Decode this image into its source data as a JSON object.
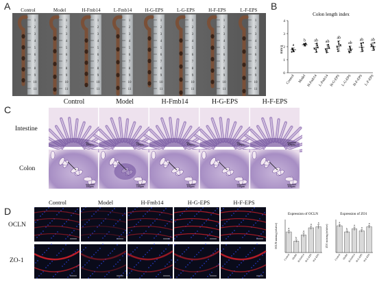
{
  "panels": {
    "a": "A",
    "b": "B",
    "c": "C",
    "d": "D"
  },
  "panelA": {
    "groups": [
      "Control",
      "Model",
      "H-Fmb14",
      "L-Fmb14",
      "H-G-EPS",
      "L-G-EPS",
      "H-F-EPS",
      "L-F-EPS"
    ]
  },
  "panelB": {
    "chart_data": {
      "type": "scatter",
      "title": "Colon length index",
      "ylabel": "mm/g",
      "ylim": [
        0,
        4
      ],
      "yticks": [
        "0",
        "1",
        "2",
        "3",
        "4"
      ],
      "categories": [
        "Control",
        "Model",
        "H-Fmb14",
        "L-Fmb14",
        "H-G-EPS",
        "L-G-EPS",
        "H-F-EPS",
        "L-F-EPS"
      ],
      "means": [
        1.75,
        2.15,
        1.9,
        1.85,
        2.05,
        1.8,
        1.95,
        2.0
      ],
      "errors": [
        0.15,
        0.1,
        0.35,
        0.3,
        0.4,
        0.25,
        0.35,
        0.3
      ],
      "significance": [
        "a",
        "b",
        "ab",
        "ab",
        "ab",
        "ab",
        "ab",
        "ab"
      ]
    }
  },
  "panelC": {
    "columns": [
      "Control",
      "Model",
      "H-Fmb14",
      "H-G-EPS",
      "H-F-EPS"
    ],
    "rows": [
      "Intestine",
      "Colon"
    ],
    "scalebars": [
      "100μm",
      "100μm",
      "100μm",
      "100μm",
      "100μm",
      "100μm",
      "100μm",
      "100μm",
      "100μm",
      "100μm"
    ]
  },
  "panelD": {
    "columns": [
      "Control",
      "Model",
      "H-Fmb14",
      "H-G-EPS",
      "H-F-EPS"
    ],
    "rows": [
      "OCLN",
      "ZO-1"
    ],
    "charts": [
      {
        "type": "bar",
        "title": "Expression of OCLN",
        "ylabel": "OCLN staining (relative)",
        "categories": [
          "Control",
          "Model",
          "H-Fmb14",
          "H-G-EPS",
          "H-F-EPS"
        ],
        "values": [
          1.0,
          0.55,
          0.85,
          1.2,
          1.25
        ],
        "errors": [
          0.08,
          0.06,
          0.1,
          0.08,
          0.1
        ],
        "significance": [
          "a",
          "b",
          "a",
          "a",
          "a"
        ],
        "ylim": [
          0,
          1.6
        ]
      },
      {
        "type": "bar",
        "title": "Expression of ZO1",
        "ylabel": "ZO1 staining (relative)",
        "categories": [
          "Control",
          "Model",
          "H-Fmb14",
          "H-G-EPS",
          "H-F-EPS"
        ],
        "values": [
          1.3,
          1.0,
          1.15,
          1.05,
          1.25
        ],
        "errors": [
          0.06,
          0.05,
          0.08,
          0.06,
          0.06
        ],
        "significance": [
          "a",
          "b",
          "a",
          "a",
          "a"
        ],
        "ylim": [
          0,
          1.6
        ]
      }
    ]
  },
  "colors": {
    "he_bg": "#eee2ee",
    "he_tissue": "#a98fc4",
    "he_dark": "#6d4d9a",
    "if_bg": "#0a0b1a",
    "if_red": "#d0202a",
    "if_blue": "#2a3fd0",
    "bar_fill": "#d9d9d9"
  }
}
